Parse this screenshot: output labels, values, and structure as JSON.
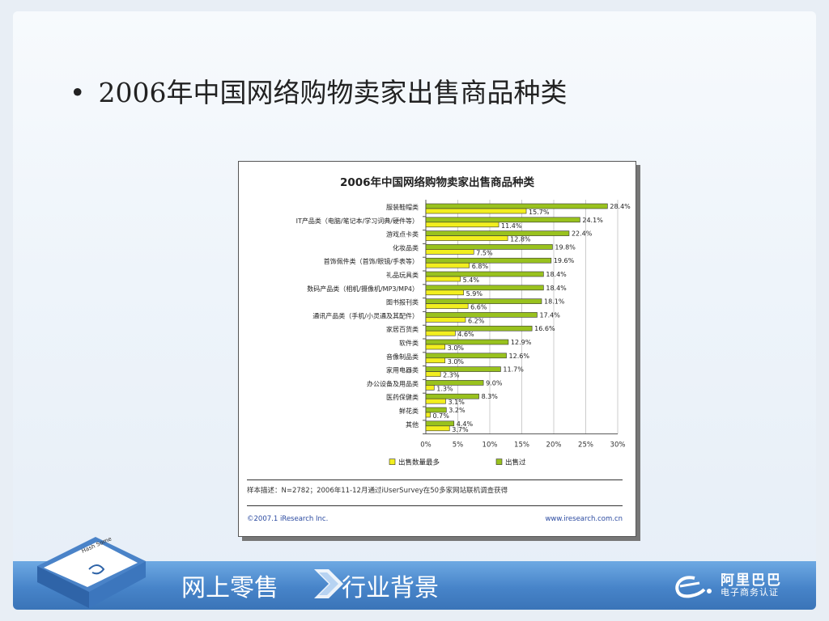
{
  "slide": {
    "bullet_symbol": "•",
    "heading": "2006年中国网络购物卖家出售商品种类",
    "nav_left": "网上零售",
    "nav_right": "行业背景",
    "book_label": "Hash Some",
    "brand_line1": "阿里巴巴",
    "brand_line2": "电子商务认证"
  },
  "chart_card": {
    "footnote": "样本描述：N=2782；2006年11-12月通过iUserSurvey在50多家网站联机调查获得",
    "copyright": "©2007.1 iResearch Inc.",
    "website": "www.iresearch.com.cn"
  },
  "chart_data": {
    "type": "bar",
    "orientation": "horizontal",
    "title": "2006年中国网络购物卖家出售商品种类",
    "categories": [
      "服装鞋帽类",
      "IT产品类（电脑/笔记本/学习词典/硬件等）",
      "游戏点卡类",
      "化妆品类",
      "首饰佩件类（首饰/眼镜/手表等）",
      "礼品玩具类",
      "数码产品类（相机/摄像机/MP3/MP4）",
      "图书报刊类",
      "通讯产品类（手机/小灵通及其配件）",
      "家居百货类",
      "软件类",
      "音像制品类",
      "家用电器类",
      "办公设备及用品类",
      "医药保健类",
      "鲜花类",
      "其他"
    ],
    "series": [
      {
        "name": "出售过",
        "color": "#99c21e",
        "values": [
          28.4,
          24.1,
          22.4,
          19.8,
          19.6,
          18.4,
          18.4,
          18.1,
          17.4,
          16.6,
          12.9,
          12.6,
          11.7,
          9.0,
          8.3,
          3.2,
          4.4
        ]
      },
      {
        "name": "出售数量最多",
        "color": "#f2ee1f",
        "values": [
          15.7,
          11.4,
          12.8,
          7.5,
          6.8,
          5.4,
          5.9,
          6.6,
          6.2,
          4.6,
          3.0,
          3.0,
          2.3,
          1.3,
          3.1,
          0.7,
          3.7
        ]
      }
    ],
    "value_labels": {
      "出售过": [
        "28.4%",
        "24.1%",
        "22.4%",
        "19.8%",
        "19.6%",
        "18.4%",
        "18.4%",
        "18.1%",
        "17.4%",
        "16.6%",
        "12.9%",
        "12.6%",
        "11.7%",
        "9.0%",
        "8.3%",
        "3.2%",
        "4.4%"
      ],
      "出售数量最多": [
        "15.7%",
        "11.4%",
        "12.8%",
        "7.5%",
        "6.8%",
        "5.4%",
        "5.9%",
        "6.6%",
        "6.2%",
        "4.6%",
        "3.0%",
        "3.0%",
        "2.3%",
        "1.3%",
        "3.1%",
        "0.7%",
        "3.7%"
      ]
    },
    "xlim": [
      0,
      30
    ],
    "xticks": [
      "0%",
      "5%",
      "10%",
      "15%",
      "20%",
      "25%",
      "30%"
    ],
    "grid": true,
    "legend": "bottom",
    "legend_order": [
      "出售数量最多",
      "出售过"
    ]
  },
  "colors": {
    "bar_sold": "#99c21e",
    "bar_most": "#f2ee1f",
    "bottom_bar": "#4784c9",
    "link": "#2b4aa0"
  },
  "icons": {
    "nav_arrow": "chevron-right-icon",
    "brand_logo": "alibaba-e-logo-icon",
    "book": "book-icon"
  }
}
